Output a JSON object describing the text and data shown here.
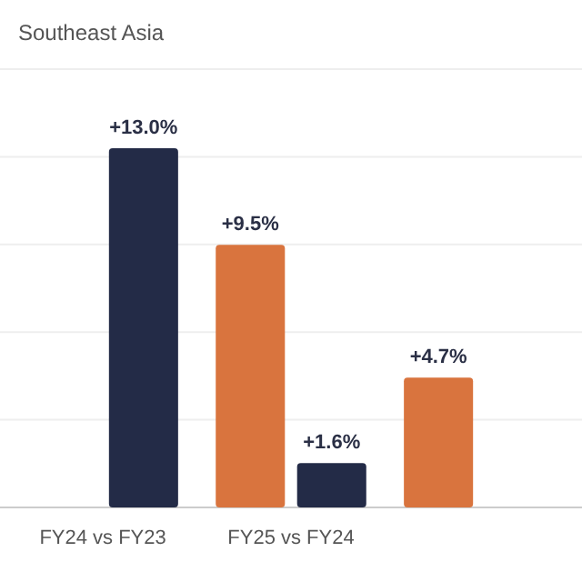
{
  "chart_data": {
    "type": "bar",
    "title": "Southeast Asia",
    "categories": [
      "FY24 vs FY23",
      "FY25 vs FY24",
      null
    ],
    "series": [
      {
        "color": "#d9743e",
        "values": [
          null,
          9.5,
          4.7
        ],
        "value_labels": [
          null,
          "+9.5%",
          "+4.7%"
        ]
      },
      {
        "color": "#232b47",
        "values": [
          13.0,
          1.6,
          null
        ],
        "value_labels": [
          "+13.0%",
          "+1.6%",
          null
        ]
      }
    ],
    "grid": true
  }
}
